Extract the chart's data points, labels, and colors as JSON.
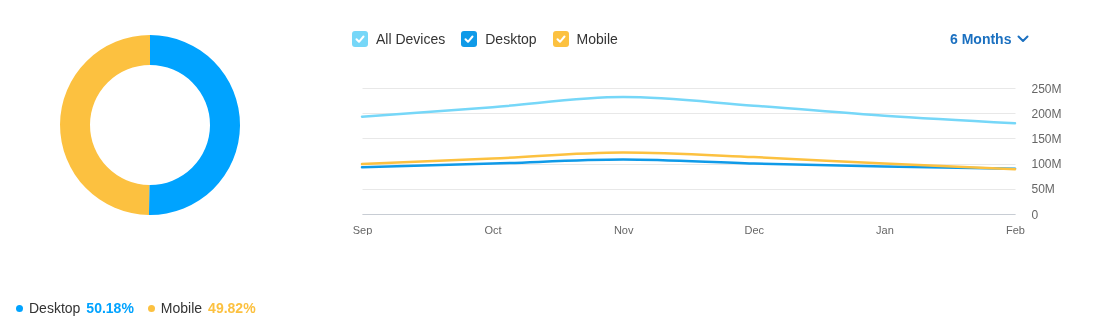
{
  "chart_data": [
    {
      "type": "donut",
      "categories": [
        "Desktop",
        "Mobile"
      ],
      "values": [
        50.18,
        49.82
      ],
      "colors": [
        "#00a3ff",
        "#fcc140"
      ],
      "value_labels": [
        "50.18%",
        "49.82%"
      ],
      "legend": "bottom"
    },
    {
      "type": "line",
      "categories": [
        "Sep",
        "Oct",
        "Nov",
        "Dec",
        "Jan",
        "Feb"
      ],
      "series": [
        {
          "name": "All Devices",
          "color": "#76d7f8",
          "values": [
            193,
            212,
            232,
            215,
            195,
            180
          ]
        },
        {
          "name": "Desktop",
          "color": "#0f9ae8",
          "values": [
            93,
            100,
            108,
            100,
            94,
            90
          ]
        },
        {
          "name": "Mobile",
          "color": "#fcc140",
          "values": [
            99,
            110,
            122,
            113,
            100,
            89
          ]
        }
      ],
      "ylim": [
        0,
        250
      ],
      "yticks": [
        0,
        {
          "value": 50,
          "label": "50M"
        },
        {
          "value": 100,
          "label": "100M"
        },
        {
          "value": 150,
          "label": "150M"
        },
        {
          "value": 200,
          "label": "200M"
        },
        {
          "value": 250,
          "label": "250M"
        }
      ],
      "grid": "y",
      "legend": "top left",
      "annotations": [
        "6 Months"
      ]
    }
  ]
}
